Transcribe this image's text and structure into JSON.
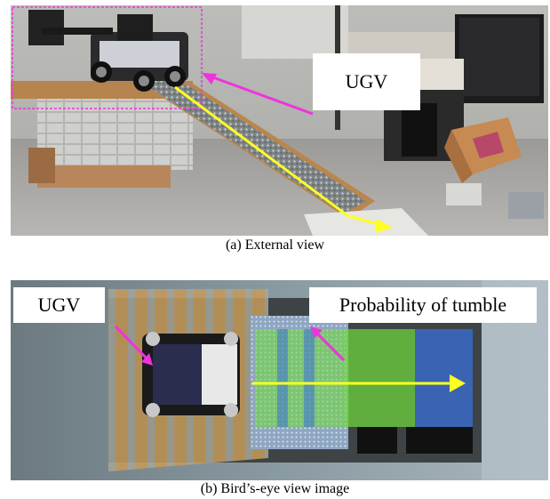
{
  "figure_a": {
    "label": "UGV",
    "caption": "(a)  External view"
  },
  "figure_b": {
    "label_left": "UGV",
    "label_right": "Probability of tumble",
    "caption": "(b)  Bird’s-eye view image"
  },
  "colors": {
    "annotation_arrow": "#ee33dd",
    "trajectory_arrow": "#ffff22",
    "probability_green": "#6fdc3a",
    "probability_blue": "#3a6fd8"
  }
}
